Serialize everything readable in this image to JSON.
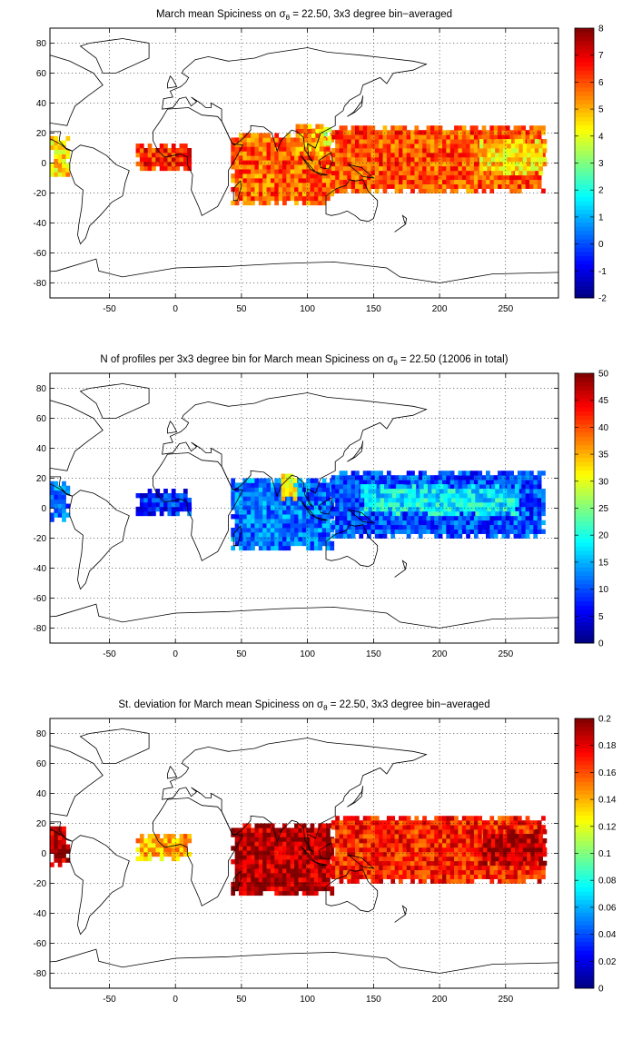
{
  "chart_data": [
    {
      "type": "heatmap",
      "title_prefix": "March mean Spiciness on ",
      "title_symbol": "σ",
      "title_subscript": "θ",
      "title_suffix": " = 22.50, 3x3 degree bin−averaged",
      "xlim": [
        -95,
        290
      ],
      "ylim": [
        -90,
        90
      ],
      "xticks": [
        -50,
        0,
        50,
        100,
        150,
        200,
        250
      ],
      "yticks": [
        -80,
        -60,
        -40,
        -20,
        0,
        20,
        40,
        60,
        80
      ],
      "grid": true,
      "colorbar": {
        "min": -2,
        "max": 8,
        "ticks": [
          -2,
          -1,
          0,
          1,
          2,
          3,
          4,
          5,
          6,
          7,
          8
        ]
      },
      "bin_size_deg": 3,
      "regions": [
        {
          "lon": [
            -95,
            -80
          ],
          "lat": [
            -9,
            17
          ],
          "value": 4.6
        },
        {
          "lon": [
            -30,
            10
          ],
          "lat": [
            -5,
            12
          ],
          "value": 6.4
        },
        {
          "lon": [
            42,
            120
          ],
          "lat": [
            -28,
            20
          ],
          "value": 5.8
        },
        {
          "lon": [
            88,
            110
          ],
          "lat": [
            5,
            25
          ],
          "value": 5.2
        },
        {
          "lon": [
            118,
            280
          ],
          "lat": [
            -20,
            25
          ],
          "value": 6.0
        },
        {
          "lon": [
            230,
            280
          ],
          "lat": [
            -8,
            16
          ],
          "value": 4.6
        },
        {
          "lon": [
            112,
            118
          ],
          "lat": [
            12,
            22
          ],
          "value": 3.6
        }
      ]
    },
    {
      "type": "heatmap",
      "title_prefix": "N of profiles per 3x3 degree bin for March mean Spiciness on ",
      "title_symbol": "σ",
      "title_subscript": "θ",
      "title_suffix": " = 22.50 (12006 in total)",
      "xlim": [
        -95,
        290
      ],
      "ylim": [
        -90,
        90
      ],
      "xticks": [
        -50,
        0,
        50,
        100,
        150,
        200,
        250
      ],
      "yticks": [
        -80,
        -60,
        -40,
        -20,
        0,
        20,
        40,
        60,
        80
      ],
      "grid": true,
      "colorbar": {
        "min": 0,
        "max": 50,
        "ticks": [
          0,
          5,
          10,
          15,
          20,
          25,
          30,
          35,
          40,
          45,
          50
        ]
      },
      "bin_size_deg": 3,
      "total_profiles": 12006,
      "regions": [
        {
          "lon": [
            -95,
            -80
          ],
          "lat": [
            -9,
            17
          ],
          "value": 12
        },
        {
          "lon": [
            -30,
            10
          ],
          "lat": [
            -5,
            12
          ],
          "value": 8
        },
        {
          "lon": [
            42,
            120
          ],
          "lat": [
            -28,
            20
          ],
          "value": 12
        },
        {
          "lon": [
            80,
            92
          ],
          "lat": [
            5,
            22
          ],
          "value": 32
        },
        {
          "lon": [
            118,
            280
          ],
          "lat": [
            -20,
            25
          ],
          "value": 10
        },
        {
          "lon": [
            140,
            260
          ],
          "lat": [
            -5,
            15
          ],
          "value": 18
        }
      ]
    },
    {
      "type": "heatmap",
      "title_prefix": "St. deviation for March mean Spiciness on ",
      "title_symbol": "σ",
      "title_subscript": "θ",
      "title_suffix": " = 22.50, 3x3 degree bin−averaged",
      "xlim": [
        -95,
        290
      ],
      "ylim": [
        -90,
        90
      ],
      "xticks": [
        -50,
        0,
        50,
        100,
        150,
        200,
        250
      ],
      "yticks": [
        -80,
        -60,
        -40,
        -20,
        0,
        20,
        40,
        60,
        80
      ],
      "grid": true,
      "colorbar": {
        "min": 0,
        "max": 0.2,
        "ticks": [
          0,
          0.02,
          0.04,
          0.06,
          0.08,
          0.1,
          0.12,
          0.14,
          0.16,
          0.18,
          0.2
        ]
      },
      "bin_size_deg": 3,
      "regions": [
        {
          "lon": [
            -95,
            -80
          ],
          "lat": [
            -9,
            17
          ],
          "value": 0.19
        },
        {
          "lon": [
            -30,
            10
          ],
          "lat": [
            -5,
            12
          ],
          "value": 0.14
        },
        {
          "lon": [
            42,
            120
          ],
          "lat": [
            -28,
            20
          ],
          "value": 0.19
        },
        {
          "lon": [
            118,
            280
          ],
          "lat": [
            -20,
            25
          ],
          "value": 0.17
        },
        {
          "lon": [
            230,
            280
          ],
          "lat": [
            -8,
            16
          ],
          "value": 0.19
        }
      ]
    }
  ]
}
